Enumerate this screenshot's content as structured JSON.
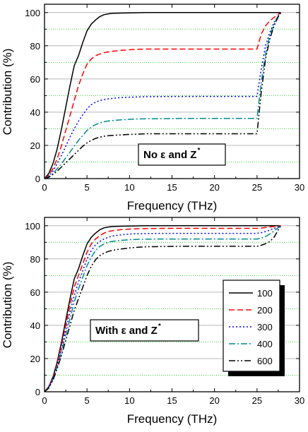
{
  "chart_data": [
    {
      "type": "line",
      "annotation": {
        "text": "No ε and Z",
        "sup": "*"
      },
      "xlabel": "Frequency (THz)",
      "ylabel": "Contribution (%)",
      "xlim": [
        0,
        30
      ],
      "ylim": [
        0,
        105
      ],
      "xticks": [
        0,
        5,
        10,
        15,
        20,
        25,
        30
      ],
      "yticks": [
        0,
        20,
        40,
        60,
        80,
        100
      ],
      "grid": "horizontal gray major at 20, 40, 60, 80, 100; green dotted minor at 10, 30, 50, 70, 90",
      "series": [
        {
          "name": "100",
          "color": "#000000",
          "dash": "solid",
          "x": [
            0,
            0.5,
            1,
            1.5,
            2,
            2.5,
            3,
            3.5,
            4,
            4.5,
            5,
            5.5,
            6,
            6.5,
            7,
            7.5,
            8,
            9,
            10,
            11,
            12,
            14,
            16,
            18,
            20,
            22,
            24,
            25,
            25.5,
            26,
            26.5,
            27,
            27.5,
            27.8
          ],
          "y": [
            0,
            3,
            9,
            18,
            30,
            43,
            56,
            68,
            74,
            82,
            89,
            93,
            95.5,
            97.5,
            98.7,
            99.2,
            99.5,
            99.7,
            99.8,
            99.9,
            100,
            100,
            100,
            100,
            100,
            100,
            100,
            100,
            100,
            100,
            100,
            100,
            100,
            100
          ]
        },
        {
          "name": "200",
          "color": "#ff0000",
          "dash": "dash",
          "x": [
            0,
            0.5,
            1,
            1.5,
            2,
            2.5,
            3,
            3.5,
            4,
            4.5,
            5,
            5.5,
            6,
            6.5,
            7,
            7.5,
            8,
            9,
            10,
            11,
            12,
            14,
            16,
            18,
            20,
            22,
            24,
            25,
            25.5,
            26,
            26.5,
            27,
            27.5,
            27.8
          ],
          "y": [
            0,
            2,
            6,
            12,
            20,
            29,
            38,
            47,
            56,
            63,
            69,
            72,
            74,
            75,
            75.8,
            76.3,
            76.7,
            77.2,
            77.6,
            77.9,
            78,
            78,
            78,
            78,
            78,
            78,
            78,
            78,
            87,
            92,
            95,
            97,
            99,
            100
          ]
        },
        {
          "name": "300",
          "color": "#0000ff",
          "dash": "dot",
          "x": [
            0,
            0.5,
            1,
            1.5,
            2,
            2.5,
            3,
            3.5,
            4,
            4.5,
            5,
            5.5,
            6,
            6.5,
            7,
            7.5,
            8,
            9,
            10,
            11,
            12,
            14,
            16,
            18,
            20,
            22,
            24,
            25,
            25.5,
            26,
            26.5,
            27,
            27.5,
            27.8
          ],
          "y": [
            0,
            1.5,
            4.5,
            9,
            14,
            19.5,
            25,
            30,
            34.5,
            38.5,
            42,
            44.5,
            46,
            47,
            47.6,
            48,
            48.3,
            48.8,
            49,
            49.2,
            49.3,
            49.4,
            49.5,
            49.5,
            49.5,
            49.5,
            49.5,
            49.5,
            66,
            80,
            88,
            94,
            98,
            100
          ]
        },
        {
          "name": "400",
          "color": "#008b8b",
          "dash": "dashdot",
          "x": [
            0,
            0.5,
            1,
            1.5,
            2,
            2.5,
            3,
            3.5,
            4,
            4.5,
            5,
            5.5,
            6,
            6.5,
            7,
            7.5,
            8,
            9,
            10,
            11,
            12,
            14,
            16,
            18,
            20,
            22,
            24,
            25,
            25.5,
            26,
            26.5,
            27,
            27.5,
            27.8
          ],
          "y": [
            0,
            1,
            3,
            6,
            9,
            12.5,
            16,
            19.5,
            23,
            26,
            29,
            31,
            32.5,
            33.5,
            34.2,
            34.7,
            35,
            35.4,
            35.7,
            35.9,
            36,
            36.1,
            36.2,
            36.2,
            36.2,
            36.2,
            36.2,
            36.2,
            58,
            75,
            86,
            93,
            98,
            100
          ]
        },
        {
          "name": "600",
          "color": "#000000",
          "dash": "dashdotdot",
          "x": [
            0,
            0.5,
            1,
            1.5,
            2,
            2.5,
            3,
            3.5,
            4,
            4.5,
            5,
            5.5,
            6,
            6.5,
            7,
            7.5,
            8,
            9,
            10,
            11,
            12,
            14,
            16,
            18,
            20,
            22,
            24,
            25,
            25.5,
            26,
            26.5,
            27,
            27.5,
            27.8
          ],
          "y": [
            0,
            0.8,
            2.5,
            4.5,
            7,
            9.5,
            12,
            14.5,
            17,
            19.5,
            21.5,
            23,
            24.2,
            25,
            25.5,
            25.8,
            26,
            26.3,
            26.6,
            26.8,
            27,
            27,
            27,
            27,
            27,
            27,
            27,
            27,
            52,
            72,
            84,
            92,
            97.5,
            100
          ]
        }
      ]
    },
    {
      "type": "line",
      "annotation": {
        "text": "With ε and Z",
        "sup": "*"
      },
      "xlabel": "Frequency (THz)",
      "ylabel": "Contribution (%)",
      "xlim": [
        0,
        30
      ],
      "ylim": [
        0,
        105
      ],
      "xticks": [
        0,
        5,
        10,
        15,
        20,
        25,
        30
      ],
      "yticks": [
        0,
        20,
        40,
        60,
        80,
        100
      ],
      "grid": "horizontal gray major at 20, 40, 60, 80, 100; green dotted minor at 10, 30, 50, 70, 90",
      "legend": "right, boxed with shadow",
      "series": [
        {
          "name": "100",
          "color": "#000000",
          "dash": "solid",
          "x": [
            0,
            0.5,
            1,
            1.5,
            2,
            2.5,
            3,
            3.5,
            4,
            4.5,
            5,
            5.5,
            6,
            6.5,
            7,
            7.5,
            8,
            9,
            10,
            11,
            12,
            14,
            16,
            18,
            20,
            22,
            24,
            25,
            25.5,
            26,
            26.5,
            27,
            27.5,
            27.8
          ],
          "y": [
            0,
            3,
            9,
            18,
            30,
            43,
            56,
            68,
            74,
            82,
            89,
            93,
            95.5,
            97.5,
            98.7,
            99.2,
            99.5,
            99.7,
            99.8,
            99.9,
            100,
            100,
            100,
            100,
            100,
            100,
            100,
            100,
            100,
            100,
            100,
            100,
            100,
            100
          ]
        },
        {
          "name": "200",
          "color": "#ff0000",
          "dash": "dash",
          "x": [
            0,
            0.5,
            1,
            1.5,
            2,
            2.5,
            3,
            3.5,
            4,
            4.5,
            5,
            5.5,
            6,
            6.5,
            7,
            7.5,
            8,
            9,
            10,
            11,
            12,
            14,
            16,
            18,
            20,
            22,
            24,
            25,
            25.5,
            26,
            26.5,
            27,
            27.5,
            27.8
          ],
          "y": [
            0,
            2.8,
            8.5,
            17,
            28,
            40,
            52,
            63,
            70,
            77,
            84,
            89,
            92,
            94,
            95.5,
            96.5,
            97,
            97.7,
            98,
            98.2,
            98.3,
            98.4,
            98.4,
            98.4,
            98.4,
            98.4,
            98.4,
            98.4,
            98.6,
            98.9,
            99.2,
            99.5,
            99.8,
            100
          ]
        },
        {
          "name": "300",
          "color": "#0000ff",
          "dash": "dot",
          "x": [
            0,
            0.5,
            1,
            1.5,
            2,
            2.5,
            3,
            3.5,
            4,
            4.5,
            5,
            5.5,
            6,
            6.5,
            7,
            7.5,
            8,
            9,
            10,
            11,
            12,
            14,
            16,
            18,
            20,
            22,
            24,
            25,
            25.5,
            26,
            26.5,
            27,
            27.5,
            27.8
          ],
          "y": [
            0,
            2.6,
            8,
            16,
            26,
            37,
            48,
            58,
            66,
            73,
            80,
            85,
            88.5,
            90.5,
            92,
            93,
            93.8,
            94.5,
            95,
            95.2,
            95.3,
            95.4,
            95.4,
            95.4,
            95.4,
            95.4,
            95.4,
            95.4,
            95.8,
            96.5,
            97.3,
            98.3,
            99.3,
            100
          ]
        },
        {
          "name": "400",
          "color": "#008b8b",
          "dash": "dashdot",
          "x": [
            0,
            0.5,
            1,
            1.5,
            2,
            2.5,
            3,
            3.5,
            4,
            4.5,
            5,
            5.5,
            6,
            6.5,
            7,
            7.5,
            8,
            9,
            10,
            11,
            12,
            14,
            16,
            18,
            20,
            22,
            24,
            25,
            25.5,
            26,
            26.5,
            27,
            27.5,
            27.8
          ],
          "y": [
            0,
            2.4,
            7.5,
            15,
            24,
            34,
            44,
            54,
            62,
            69,
            76,
            81,
            85,
            87.5,
            89,
            90,
            90.6,
            91.2,
            91.6,
            91.8,
            91.9,
            92,
            92,
            92,
            92,
            92,
            92,
            92,
            92.5,
            93.5,
            95,
            96.8,
            98.8,
            100
          ]
        },
        {
          "name": "600",
          "color": "#000000",
          "dash": "dashdotdot",
          "x": [
            0,
            0.5,
            1,
            1.5,
            2,
            2.5,
            3,
            3.5,
            4,
            4.5,
            5,
            5.5,
            6,
            6.5,
            7,
            7.5,
            8,
            9,
            10,
            11,
            12,
            14,
            16,
            18,
            20,
            22,
            24,
            25,
            25.5,
            26,
            26.5,
            27,
            27.5,
            27.8
          ],
          "y": [
            0,
            2.2,
            7,
            14,
            22,
            31,
            40,
            49,
            56,
            63,
            70,
            75.5,
            79.5,
            82,
            83.5,
            84.5,
            85.2,
            86,
            86.6,
            87,
            87.3,
            87.5,
            87.6,
            87.6,
            87.6,
            87.6,
            87.6,
            87.6,
            88.2,
            89.2,
            90.5,
            93,
            97.5,
            100
          ]
        }
      ]
    }
  ]
}
